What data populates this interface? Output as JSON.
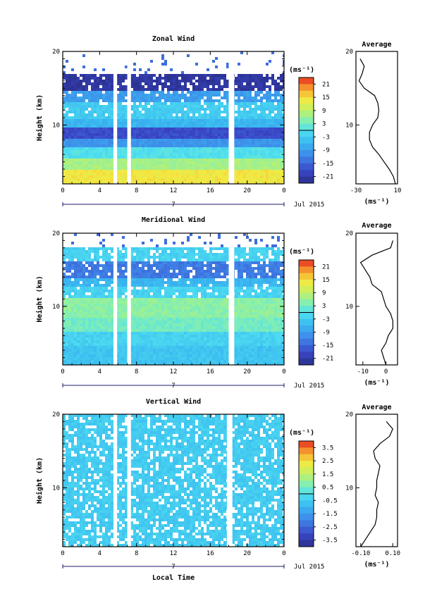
{
  "chart_data": [
    {
      "type": "heatmap",
      "title": "Zonal Wind",
      "ylabel": "Height (km)",
      "ylim": [
        2,
        20
      ],
      "xlim": [
        0,
        24
      ],
      "xticks": [
        "0",
        "4",
        "8",
        "12",
        "16",
        "20",
        "0"
      ],
      "yticks": [
        "20",
        "10"
      ],
      "colorbar": {
        "unit": "(ms⁻¹)",
        "ticks": [
          "21",
          "15",
          "9",
          "3",
          "-3",
          "-9",
          "-15",
          "-21"
        ],
        "range": [
          -24,
          24
        ]
      },
      "data_gaps_hours": [
        [
          5.5,
          5.9
        ],
        [
          7.0,
          7.4
        ],
        [
          18.0,
          18.6
        ]
      ],
      "layers": [
        {
          "from": 2,
          "to": 4,
          "value": 14
        },
        {
          "from": 4,
          "to": 5.5,
          "value": 7
        },
        {
          "from": 5.5,
          "to": 7,
          "value": 0
        },
        {
          "from": 7,
          "to": 8,
          "value": -10
        },
        {
          "from": 8,
          "to": 9.5,
          "value": -18
        },
        {
          "from": 9.5,
          "to": 11,
          "value": -6
        },
        {
          "from": 11,
          "to": 13,
          "value": -3
        },
        {
          "from": 13,
          "to": 14.5,
          "value": -9
        },
        {
          "from": 14.5,
          "to": 17,
          "value": -22
        }
      ],
      "average_profile": {
        "title": "Average",
        "xlabel": "(ms⁻¹)",
        "xticks": [
          "-30",
          "10"
        ],
        "xlim": [
          -30,
          10
        ],
        "yticks": [
          "20",
          "10"
        ],
        "heights": [
          2,
          3,
          4,
          5,
          6,
          7,
          8,
          9,
          10,
          11,
          12,
          13,
          14,
          15,
          16,
          17,
          18,
          19
        ],
        "values": [
          8,
          6,
          2,
          -3,
          -8,
          -14,
          -17,
          -17,
          -14,
          -9,
          -8,
          -9,
          -12,
          -22,
          -27,
          -24,
          -22,
          -26
        ]
      }
    },
    {
      "type": "heatmap",
      "title": "Meridional Wind",
      "ylabel": "Height (km)",
      "ylim": [
        2,
        20
      ],
      "xlim": [
        0,
        24
      ],
      "xticks": [
        "0",
        "4",
        "8",
        "12",
        "16",
        "20",
        "0"
      ],
      "yticks": [
        "20",
        "10"
      ],
      "colorbar": {
        "unit": "(ms⁻¹)",
        "ticks": [
          "21",
          "15",
          "9",
          "3",
          "-3",
          "-9",
          "-15",
          "-21"
        ],
        "range": [
          -24,
          24
        ]
      },
      "data_gaps_hours": [
        [
          5.5,
          5.9
        ],
        [
          7.0,
          7.4
        ],
        [
          18.0,
          18.6
        ]
      ],
      "layers": [
        {
          "from": 2,
          "to": 4.5,
          "value": -4
        },
        {
          "from": 4.5,
          "to": 6.5,
          "value": -2
        },
        {
          "from": 6.5,
          "to": 8.5,
          "value": 3
        },
        {
          "from": 8.5,
          "to": 11,
          "value": 5
        },
        {
          "from": 11,
          "to": 12.5,
          "value": -2
        },
        {
          "from": 12.5,
          "to": 14,
          "value": -6
        },
        {
          "from": 14,
          "to": 16,
          "value": -13
        },
        {
          "from": 16,
          "to": 18,
          "value": -2
        }
      ],
      "average_profile": {
        "title": "Average",
        "xlabel": "(ms⁻¹)",
        "xticks": [
          "-10",
          "0"
        ],
        "xlim": [
          -13,
          5
        ],
        "yticks": [
          "20",
          "10"
        ],
        "heights": [
          2,
          3,
          4,
          5,
          6,
          7,
          8,
          9,
          10,
          11,
          12,
          13,
          14,
          15,
          16,
          17,
          18,
          19
        ],
        "values": [
          0,
          -1,
          -2,
          0,
          1,
          3,
          3,
          2,
          0,
          -1,
          -2,
          -6,
          -7,
          -9,
          -11,
          -6,
          2,
          3
        ]
      }
    },
    {
      "type": "heatmap",
      "title": "Vertical Wind",
      "ylabel": "Height (km)",
      "xlabel": "Local Time",
      "ylim": [
        2,
        20
      ],
      "xlim": [
        0,
        24
      ],
      "xticks": [
        "0",
        "4",
        "8",
        "12",
        "16",
        "20",
        "0"
      ],
      "yticks": [
        "20",
        "10"
      ],
      "colorbar": {
        "unit": "(ms⁻¹)",
        "ticks": [
          "3.5",
          "2.5",
          "1.5",
          "0.5",
          "-0.5",
          "-1.5",
          "-2.5",
          "-3.5"
        ],
        "range": [
          -4,
          4
        ]
      },
      "data_gaps_hours": [
        [
          5.5,
          5.9
        ],
        [
          7.0,
          7.4
        ],
        [
          17.8,
          18.4
        ]
      ],
      "layers": [
        {
          "from": 2,
          "to": 20,
          "value": -0.5
        }
      ],
      "average_profile": {
        "title": "Average",
        "xlabel": "(ms⁻¹)",
        "xticks": [
          "-0.10",
          "0.10"
        ],
        "xlim": [
          -0.13,
          0.13
        ],
        "yticks": [
          "20",
          "10"
        ],
        "heights": [
          2,
          3,
          4,
          5,
          6,
          7,
          8,
          9,
          10,
          11,
          12,
          13,
          14,
          15,
          16,
          17,
          18,
          19
        ],
        "values": [
          -0.1,
          -0.07,
          -0.04,
          -0.01,
          0.0,
          0.0,
          0.01,
          -0.01,
          0.0,
          0.0,
          0.01,
          0.02,
          -0.01,
          -0.02,
          0.02,
          0.08,
          0.1,
          0.06
        ]
      }
    }
  ],
  "date_label": "Jul 2015",
  "day_label": "7"
}
